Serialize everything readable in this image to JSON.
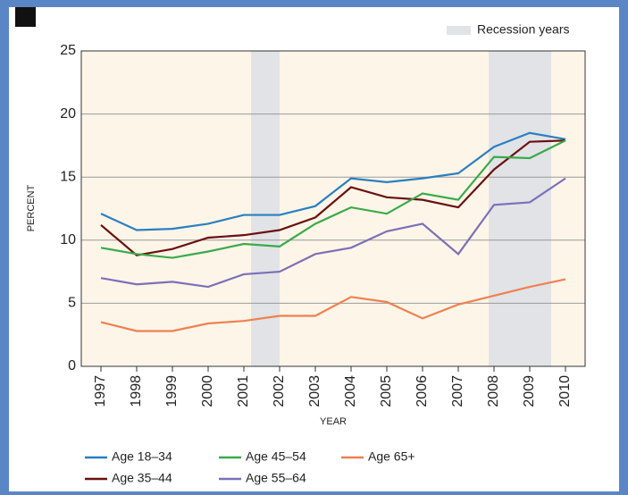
{
  "chart_data": {
    "type": "line",
    "x": [
      1997,
      1998,
      1999,
      2000,
      2001,
      2002,
      2003,
      2004,
      2005,
      2006,
      2007,
      2008,
      2009,
      2010
    ],
    "series": [
      {
        "name": "Age 18–34",
        "color": "#2a7fc1",
        "values": [
          12.1,
          10.8,
          10.9,
          11.3,
          12.0,
          12.0,
          12.7,
          14.9,
          14.6,
          14.9,
          15.3,
          17.4,
          18.5,
          18.0
        ]
      },
      {
        "name": "Age 35–44",
        "color": "#6b1010",
        "values": [
          11.2,
          8.8,
          9.3,
          10.2,
          10.4,
          10.8,
          11.8,
          14.2,
          13.4,
          13.2,
          12.6,
          15.6,
          17.8,
          17.9
        ]
      },
      {
        "name": "Age 45–54",
        "color": "#3aaa4a",
        "values": [
          9.4,
          8.9,
          8.6,
          9.1,
          9.7,
          9.5,
          11.3,
          12.6,
          12.1,
          13.7,
          13.2,
          16.6,
          16.5,
          17.9
        ]
      },
      {
        "name": "Age 55–64",
        "color": "#7b70b8",
        "values": [
          7.0,
          6.5,
          6.7,
          6.3,
          7.3,
          7.5,
          8.9,
          9.4,
          10.7,
          11.3,
          8.9,
          12.8,
          13.0,
          14.9
        ]
      },
      {
        "name": "Age 65+",
        "color": "#f08050",
        "values": [
          3.5,
          2.8,
          2.8,
          3.4,
          3.6,
          4.0,
          4.0,
          5.5,
          5.1,
          3.8,
          4.9,
          5.6,
          6.3,
          6.9
        ]
      }
    ],
    "shaded_label": "Recession years",
    "shaded_color": "#e1e3e6",
    "shaded_ranges": [
      [
        2001.2,
        2002.0
      ],
      [
        2007.85,
        2009.6
      ]
    ],
    "xlabel": "YEAR",
    "ylabel": "PERCENT",
    "xlim": [
      1996.45,
      2010.55
    ],
    "ylim": [
      0,
      25
    ],
    "xticks": [
      1997,
      1998,
      1999,
      2000,
      2001,
      2002,
      2003,
      2004,
      2005,
      2006,
      2007,
      2008,
      2009,
      2010
    ],
    "yticks": [
      0,
      5,
      10,
      15,
      20,
      25
    ],
    "grid": true
  }
}
